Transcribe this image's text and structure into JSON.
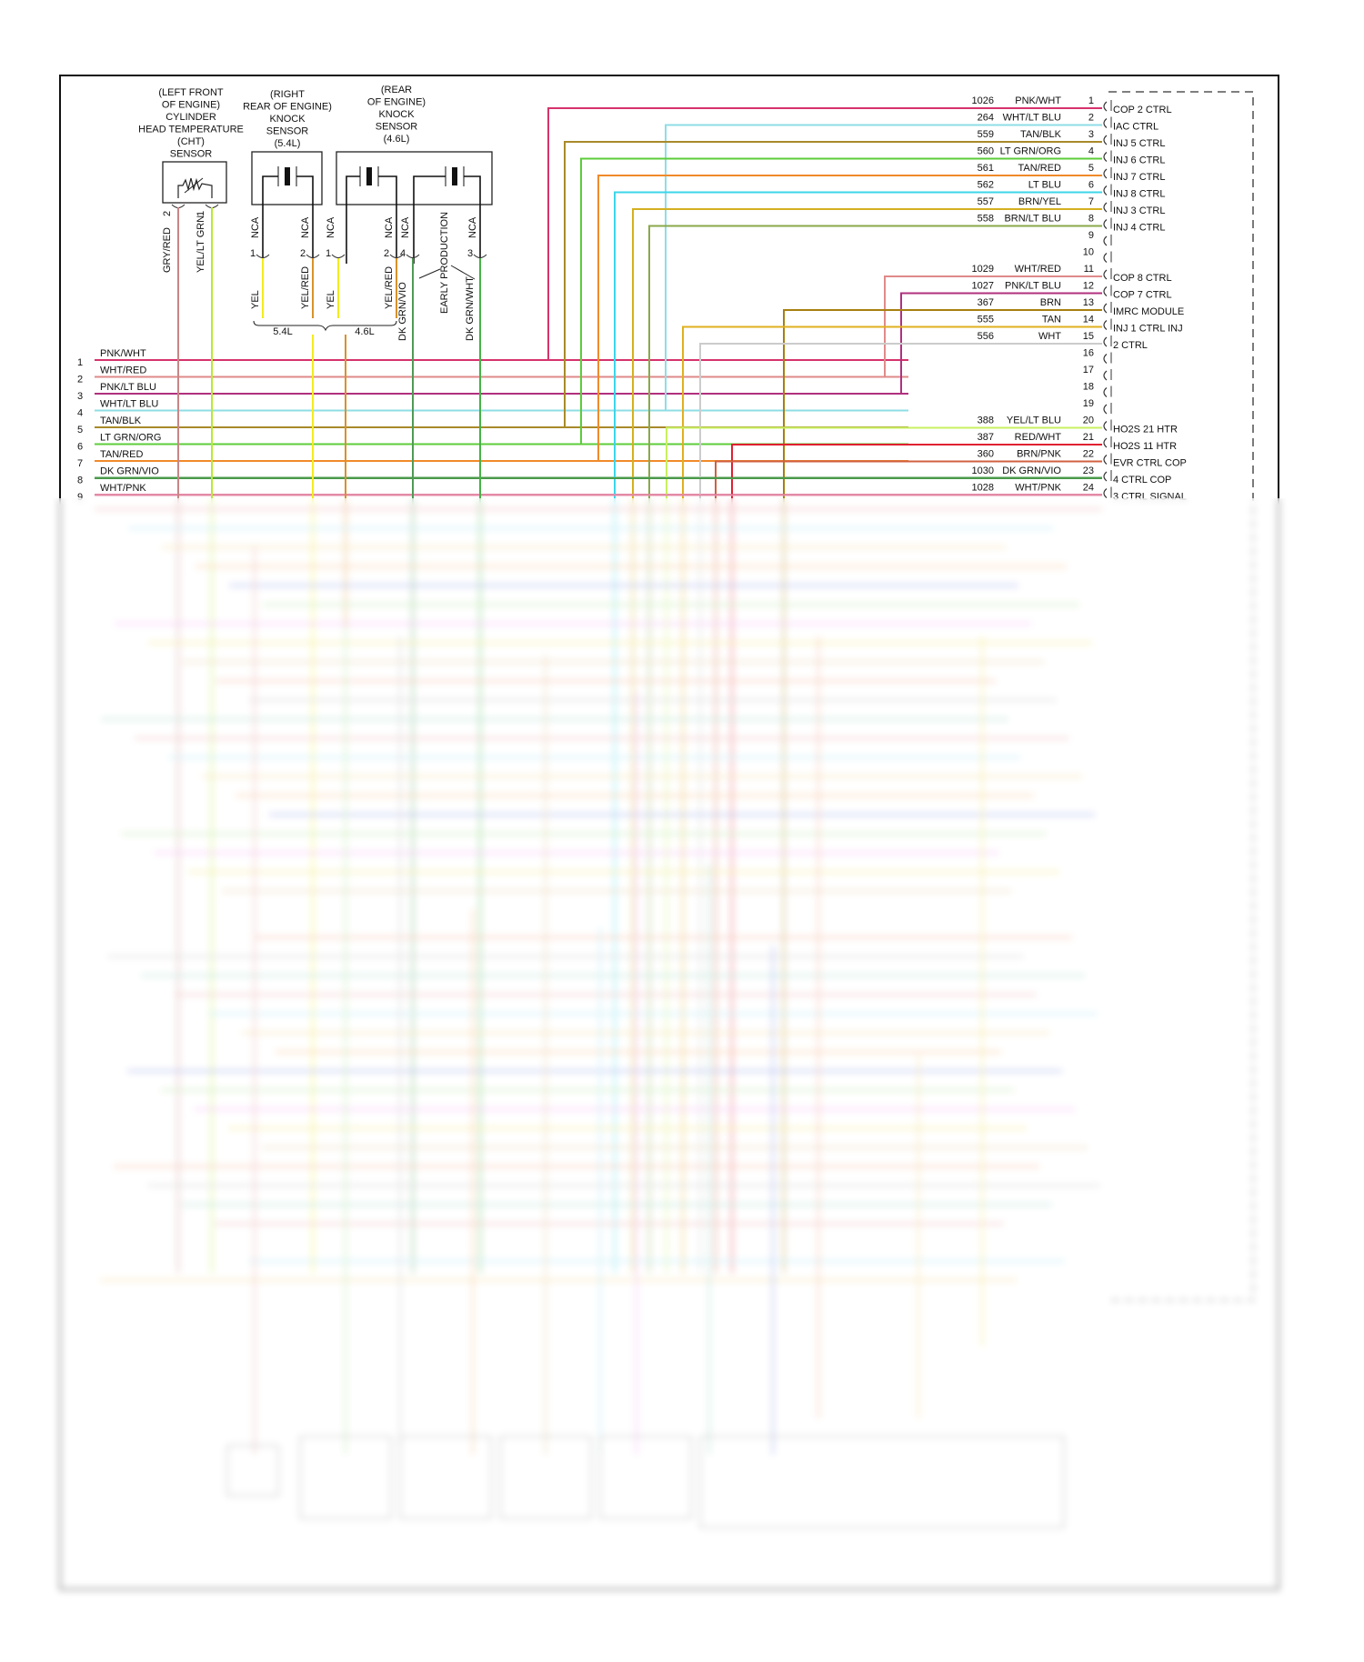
{
  "sensors": {
    "cht": {
      "title": [
        "(LEFT FRONT",
        "OF ENGINE)",
        "CYLINDER",
        "HEAD TEMPERATURE",
        "(CHT)",
        "SENSOR"
      ],
      "pins": [
        {
          "pin": "2",
          "wire": "GRY/RED",
          "color": "#c98585"
        },
        {
          "pin": "1",
          "wire": "YEL/LT GRN",
          "color": "#b9e833"
        }
      ]
    },
    "knock_54": {
      "title": [
        "(RIGHT",
        "REAR OF ENGINE)",
        "KNOCK",
        "SENSOR",
        "(5.4L)"
      ],
      "pins": [
        {
          "pin": "1",
          "side": "NCA",
          "wire": "YEL",
          "color": "#f2ec1e"
        },
        {
          "pin": "2",
          "side": "NCA",
          "wire": "YEL/RED",
          "color": "#d8922a"
        }
      ]
    },
    "knock_46": {
      "title": [
        "(REAR",
        "OF ENGINE)",
        "KNOCK",
        "SENSOR",
        "(4.6L)"
      ],
      "pins": [
        {
          "pin": "1",
          "side": "NCA",
          "wire": "YEL",
          "color": "#f2ec1e"
        },
        {
          "pin": "2",
          "side": "NCA",
          "wire": "YEL/RED",
          "color": "#d8922a"
        },
        {
          "pin": "4",
          "side": "NCA",
          "wire": "DK GRN/VIO",
          "color": "#4f9a55"
        },
        {
          "pin": "3",
          "side": "NCA",
          "wire": "DK GRN/WHT",
          "color": "#44b244"
        }
      ],
      "note": "EARLY PRODUCTION"
    },
    "brace_labels": [
      "5.4L",
      "4.6L"
    ]
  },
  "left_connector": {
    "rows": [
      {
        "pin": "1",
        "wire": "PNK/WHT",
        "color": "#d6336c"
      },
      {
        "pin": "2",
        "wire": "WHT/RED",
        "color": "#e08a8a"
      },
      {
        "pin": "3",
        "wire": "PNK/LT BLU",
        "color": "#b0307e"
      },
      {
        "pin": "4",
        "wire": "WHT/LT BLU",
        "color": "#8fdde6"
      },
      {
        "pin": "5",
        "wire": "TAN/BLK",
        "color": "#a88a2a"
      },
      {
        "pin": "6",
        "wire": "LT GRN/ORG",
        "color": "#5ccc3a"
      },
      {
        "pin": "7",
        "wire": "TAN/RED",
        "color": "#f08a2a"
      },
      {
        "pin": "8",
        "wire": "DK GRN/VIO",
        "color": "#4a9a4a"
      },
      {
        "pin": "9",
        "wire": "WHT/PNK",
        "color": "#e48aa6"
      }
    ]
  },
  "pcm_connector": {
    "rows": [
      {
        "pin": "1",
        "circuit": "1026",
        "wire": "PNK/WHT",
        "function": "COP 2 CTRL",
        "color": "#d6336c"
      },
      {
        "pin": "2",
        "circuit": "264",
        "wire": "WHT/LT BLU",
        "function": "IAC CTRL",
        "color": "#8fdde6"
      },
      {
        "pin": "3",
        "circuit": "559",
        "wire": "TAN/BLK",
        "function": "INJ 5 CTRL",
        "color": "#a88a2a"
      },
      {
        "pin": "4",
        "circuit": "560",
        "wire": "LT GRN/ORG",
        "function": "INJ 6 CTRL",
        "color": "#5ccc3a"
      },
      {
        "pin": "5",
        "circuit": "561",
        "wire": "TAN/RED",
        "function": "INJ 7 CTRL",
        "color": "#f08a2a"
      },
      {
        "pin": "6",
        "circuit": "562",
        "wire": "LT BLU",
        "function": "INJ 8 CTRL",
        "color": "#3cd6e8"
      },
      {
        "pin": "7",
        "circuit": "557",
        "wire": "BRN/YEL",
        "function": "INJ 3 CTRL",
        "color": "#d4b020"
      },
      {
        "pin": "8",
        "circuit": "558",
        "wire": "BRN/LT BLU",
        "function": "INJ 4 CTRL",
        "color": "#8aa84a"
      },
      {
        "pin": "9",
        "circuit": "",
        "wire": "",
        "function": "",
        "color": ""
      },
      {
        "pin": "10",
        "circuit": "",
        "wire": "",
        "function": "",
        "color": ""
      },
      {
        "pin": "11",
        "circuit": "1029",
        "wire": "WHT/RED",
        "function": "COP 8 CTRL",
        "color": "#e08a8a"
      },
      {
        "pin": "12",
        "circuit": "1027",
        "wire": "PNK/LT BLU",
        "function": "COP 7 CTRL",
        "color": "#b0307e"
      },
      {
        "pin": "13",
        "circuit": "367",
        "wire": "BRN",
        "function": "IMRC MODULE",
        "color": "#a88010"
      },
      {
        "pin": "14",
        "circuit": "555",
        "wire": "TAN",
        "function": "INJ 1 CTRL INJ",
        "color": "#e0b020"
      },
      {
        "pin": "15",
        "circuit": "556",
        "wire": "WHT",
        "function": "2 CTRL",
        "color": "#cccccc"
      },
      {
        "pin": "16",
        "circuit": "",
        "wire": "",
        "function": "",
        "color": ""
      },
      {
        "pin": "17",
        "circuit": "",
        "wire": "",
        "function": "",
        "color": ""
      },
      {
        "pin": "18",
        "circuit": "",
        "wire": "",
        "function": "",
        "color": ""
      },
      {
        "pin": "19",
        "circuit": "",
        "wire": "",
        "function": "",
        "color": ""
      },
      {
        "pin": "20",
        "circuit": "388",
        "wire": "YEL/LT BLU",
        "function": "HO2S 21 HTR",
        "color": "#c8f060"
      },
      {
        "pin": "21",
        "circuit": "387",
        "wire": "RED/WHT",
        "function": "HO2S 11 HTR",
        "color": "#e02030"
      },
      {
        "pin": "22",
        "circuit": "360",
        "wire": "BRN/PNK",
        "function": "EVR CTRL COP",
        "color": "#d06040"
      },
      {
        "pin": "23",
        "circuit": "1030",
        "wire": "DK GRN/VIO",
        "function": "4 CTRL COP",
        "color": "#4a9a4a"
      },
      {
        "pin": "24",
        "circuit": "1028",
        "wire": "WHT/PNK",
        "function": "3 CTRL SIGNAL",
        "color": "#e48aa6"
      }
    ]
  }
}
